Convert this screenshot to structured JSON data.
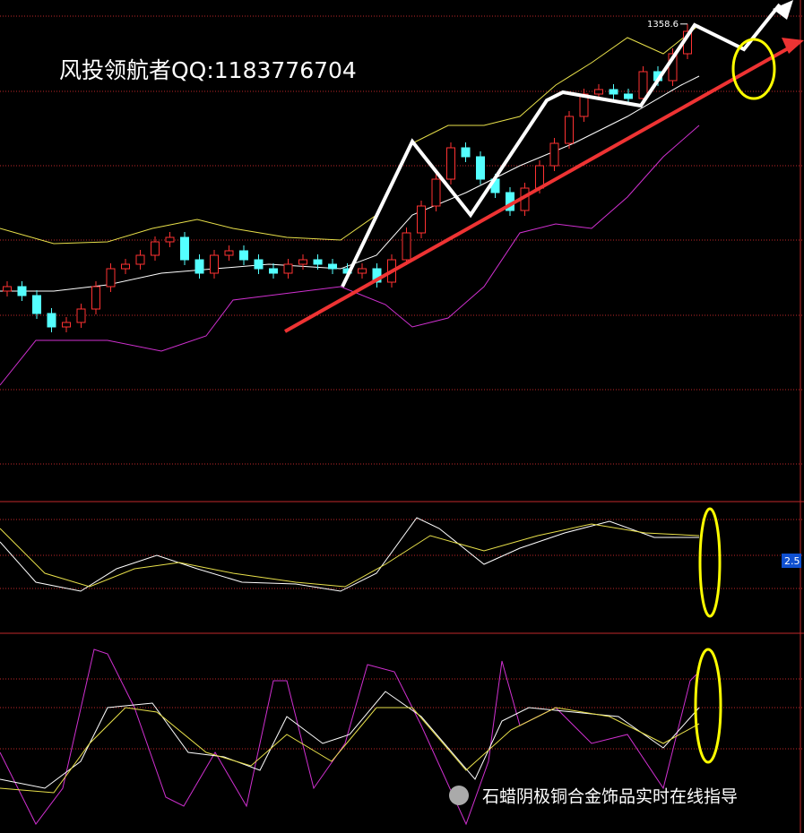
{
  "chart_data": {
    "type": "candlestick",
    "title": "风投领航者QQ:1183776704",
    "footer": "石蜡阴极铜合金饰品实时在线指导",
    "indicator_value": 2.5,
    "ylim": [
      1094.5,
      1372
    ],
    "up_color": "#ff3232",
    "down_color": "#54ffff",
    "open": [
      1209.5,
      1212,
      1207,
      1197,
      1189.5,
      1192,
      1199.5,
      1212,
      1222,
      1224.5,
      1229.5,
      1237,
      1239.5,
      1227,
      1219.5,
      1229.5,
      1232,
      1227,
      1222,
      1219.5,
      1224.5,
      1227,
      1224.5,
      1222,
      1219.5,
      1222,
      1214.5,
      1227,
      1242,
      1257,
      1272,
      1289.5,
      1284.5,
      1272,
      1264.5,
      1254.5,
      1267,
      1279.5,
      1292,
      1307,
      1319.5,
      1322,
      1319.5,
      1317,
      1332,
      1327,
      1342
    ],
    "close": [
      1212,
      1207,
      1197,
      1189.5,
      1192,
      1199.5,
      1212,
      1222,
      1224.5,
      1229.5,
      1237,
      1239.5,
      1227,
      1219.5,
      1229.5,
      1232,
      1227,
      1222,
      1219.5,
      1224.5,
      1227,
      1224.5,
      1222,
      1219.5,
      1222,
      1214.5,
      1227,
      1242,
      1257,
      1272,
      1289.5,
      1284.5,
      1272,
      1264.5,
      1254.5,
      1267,
      1279.5,
      1292,
      1307,
      1319.5,
      1322,
      1319.5,
      1317,
      1332,
      1327,
      1342,
      1354.5
    ],
    "high": [
      1215,
      1215,
      1210,
      1200,
      1195,
      1202.5,
      1215,
      1225,
      1227.5,
      1232.5,
      1240,
      1242.5,
      1242.5,
      1230,
      1232.5,
      1235,
      1235,
      1230,
      1225,
      1227.5,
      1230,
      1230,
      1227.5,
      1225,
      1225,
      1225,
      1230,
      1245,
      1260,
      1275,
      1292.5,
      1292.5,
      1287.5,
      1275,
      1267.5,
      1270,
      1282.5,
      1295,
      1310,
      1322.5,
      1325,
      1325,
      1322.5,
      1335,
      1335,
      1345,
      1358.6
    ],
    "low": [
      1206.5,
      1204,
      1194,
      1186.5,
      1186.5,
      1189,
      1196.5,
      1209,
      1219,
      1221.5,
      1226.5,
      1234,
      1224,
      1216.5,
      1216.5,
      1226.5,
      1224,
      1219,
      1216.5,
      1216.5,
      1221.5,
      1221.5,
      1219,
      1216.5,
      1216.5,
      1211.5,
      1211.5,
      1224,
      1239,
      1254,
      1269,
      1281.5,
      1269,
      1261.5,
      1251.5,
      1251.5,
      1264,
      1276.5,
      1289,
      1304,
      1316.5,
      1316.5,
      1314,
      1314,
      1324,
      1324,
      1339
    ]
  }
}
